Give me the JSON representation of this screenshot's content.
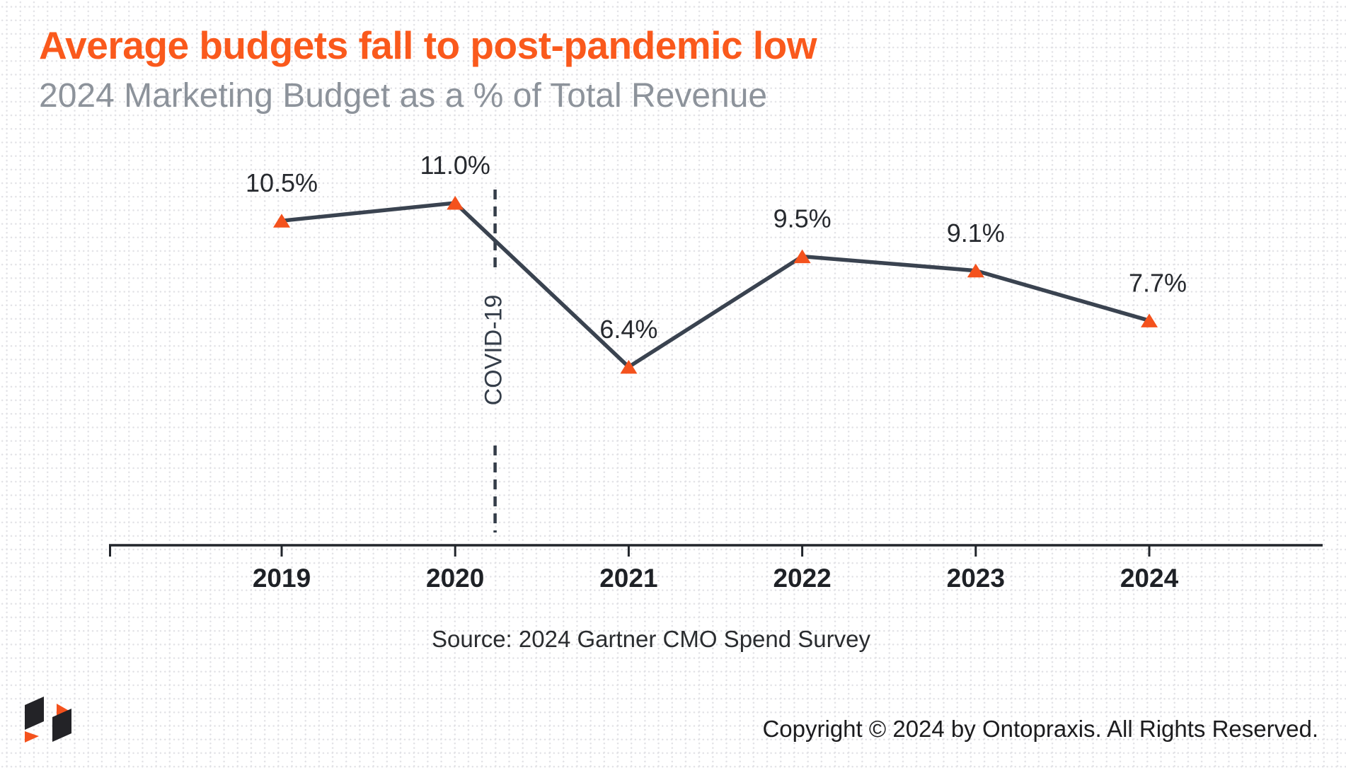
{
  "header": {
    "title": "Average budgets fall to post-pandemic low",
    "subtitle": "2024 Marketing Budget as a % of Total Revenue"
  },
  "footer": {
    "source": "Source: 2024 Gartner CMO Spend Survey",
    "copyright": "Copyright © 2024 by Ontopraxis. All Rights Reserved.",
    "logo": "ontopraxis-logo-mark"
  },
  "colors": {
    "title_orange": "#fa591c",
    "subtitle_gray": "#8d939b",
    "series_line": "#3a4350",
    "marker_orange": "#f4521d",
    "axis": "#21252b",
    "data_label": "#26292e",
    "year_label": "#1e2126",
    "annotation": "#343d49",
    "grid_dot": "#e2e2e6",
    "logo_dark": "#232327",
    "logo_orange": "#f4521d"
  },
  "chart_data": {
    "type": "line",
    "title": "Average budgets fall to post-pandemic low",
    "subtitle": "2024 Marketing Budget as a % of Total Revenue",
    "x": [
      2019,
      2020,
      2021,
      2022,
      2023,
      2024
    ],
    "values": [
      10.5,
      11.0,
      6.4,
      9.5,
      9.1,
      7.7
    ],
    "point_labels": [
      "10.5%",
      "11.0%",
      "6.4%",
      "9.5%",
      "9.1%",
      "7.7%"
    ],
    "value_suffix": "%",
    "marker": "triangle-up",
    "line_style": "solid",
    "legend": false,
    "grid": "dotted-page-background",
    "ylim": [
      1.4,
      11.7
    ],
    "xlabel": "",
    "ylabel": "",
    "annotations": [
      {
        "type": "vline",
        "x": 2020.23,
        "label": "COVID-19",
        "style": "dashed"
      }
    ],
    "source": "Source: 2024 Gartner CMO Spend Survey"
  }
}
